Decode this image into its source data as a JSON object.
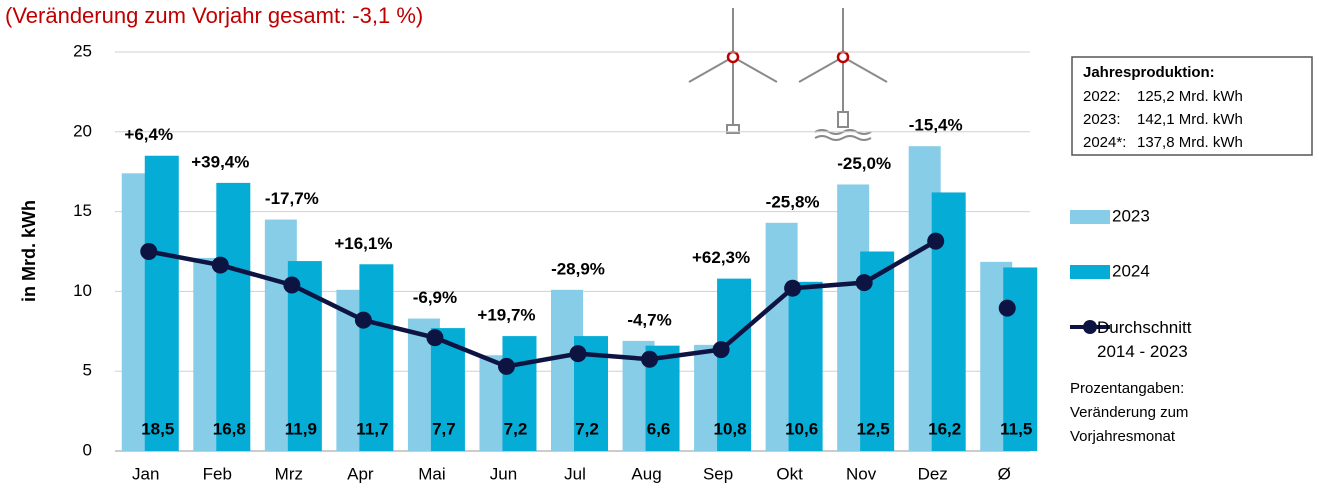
{
  "chart_data": {
    "type": "bar",
    "title": "(Veränderung zum Vorjahr gesamt: -3,1 %)",
    "y_label": "in Mrd. kWh",
    "categories": [
      "Jan",
      "Feb",
      "Mrz",
      "Apr",
      "Mai",
      "Jun",
      "Jul",
      "Aug",
      "Sep",
      "Okt",
      "Nov",
      "Dez",
      "Ø"
    ],
    "series": [
      {
        "name": "2023",
        "color": "#87cde8",
        "values": [
          17.4,
          12.1,
          14.5,
          10.1,
          8.3,
          6.0,
          10.1,
          6.9,
          6.65,
          14.3,
          16.7,
          19.1,
          11.85
        ]
      },
      {
        "name": "2024",
        "color": "#05acd6",
        "values": [
          18.5,
          16.8,
          11.9,
          11.7,
          7.7,
          7.2,
          7.2,
          6.6,
          10.8,
          10.6,
          12.5,
          16.2,
          11.5
        ],
        "value_labels": [
          "18,5",
          "16,8",
          "11,9",
          "11,7",
          "7,7",
          "7,2",
          "7,2",
          "6,6",
          "10,8",
          "10,6",
          "12,5",
          "16,2",
          "11,5"
        ]
      },
      {
        "name": "Durchschnitt 2014 - 2023",
        "type": "line",
        "color": "#0d1442",
        "values": [
          12.5,
          11.65,
          10.4,
          8.2,
          7.1,
          5.3,
          6.1,
          5.75,
          6.35,
          10.2,
          10.55,
          13.15,
          8.95
        ]
      }
    ],
    "annotations": [
      "+6,4%",
      "+39,4%",
      "-17,7%",
      "+16,1%",
      "-6,9%",
      "+19,7%",
      "-28,9%",
      "-4,7%",
      "+62,3%",
      "-25,8%",
      "-25,0%",
      "-15,4%",
      null
    ],
    "ylim": [
      0,
      25
    ],
    "yticks": [
      0,
      5,
      10,
      15,
      20,
      25
    ],
    "grid": true,
    "info_box": {
      "title": "Jahresproduktion:",
      "rows": [
        [
          "2022:",
          "125,2 Mrd. kWh"
        ],
        [
          "2023:",
          "142,1 Mrd. kWh"
        ],
        [
          "2024*:",
          "137,8 Mrd. kWh"
        ]
      ]
    },
    "note": "Prozentangaben: Veränderung zum Vorjahresmonat"
  }
}
